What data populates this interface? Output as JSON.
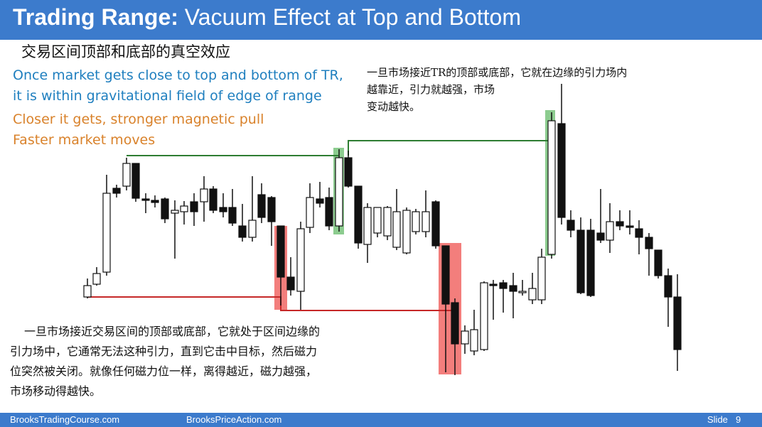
{
  "slide": {
    "title_bold": "Trading Range:",
    "title_rest": "Vacuum Effect at Top and Bottom",
    "subtitle_cn": "交易区间顶部和底部的真空效应",
    "en_line1": "Once market gets close to top and bottom of TR,",
    "en_line2": "it is within gravitational field of edge of range",
    "en_line3": "Closer it gets, stronger magnetic pull",
    "en_line4": "Faster market moves",
    "cn_top_line1": "一旦市场接近TR的顶部或底部，它就在边缘的引力场内",
    "cn_top_line2": "越靠近，引力就越强，市场",
    "cn_top_line3": "变动越快。",
    "cn_bottom_line1": "一旦市场接近交易区间的顶部或底部，它就处于区间边缘的",
    "cn_bottom_line2": "引力场中，它通常无法这种引力，直到它击中目标，然后磁力",
    "cn_bottom_line3": "位突然被关闭。就像任何磁力位一样，离得越近，磁力越强，",
    "cn_bottom_line4": "市场移动得越快。"
  },
  "footer": {
    "left": "BrooksTradingCourse.com",
    "center": "BrooksPriceAction.com",
    "slide_label": "Slide",
    "slide_number": "9"
  },
  "colors": {
    "title_bar": "#3c7bcc",
    "en_blue": "#1f7fbf",
    "en_orange": "#d9822b",
    "top_line": "#2e7d32",
    "bottom_line": "#c62828",
    "top_highlight": "#66bb6a",
    "bottom_highlight": "#ef5350"
  }
}
